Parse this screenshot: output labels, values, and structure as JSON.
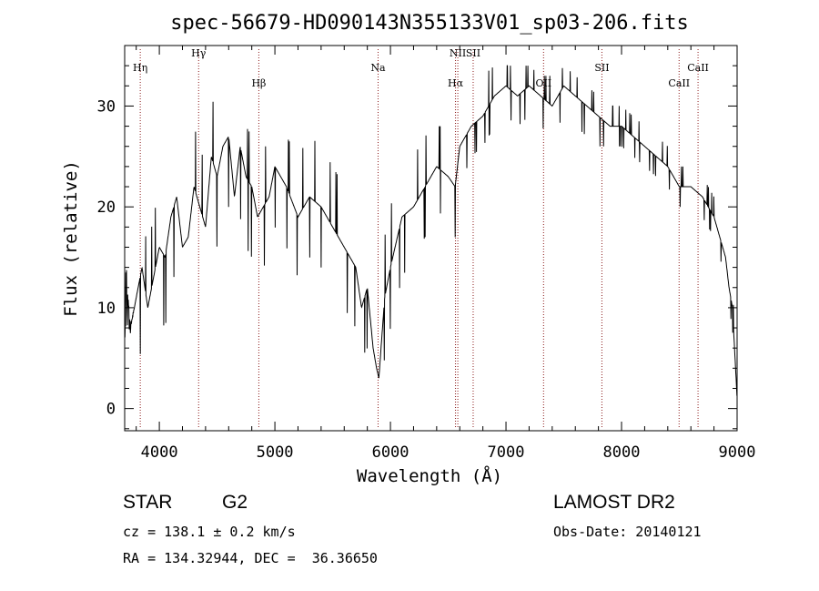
{
  "chart_data": {
    "type": "line",
    "title": "spec-56679-HD090143N355133V01_sp03-206.fits",
    "xlabel": "Wavelength (Å)",
    "ylabel": "Flux (relative)",
    "xlim": [
      3700,
      9000
    ],
    "ylim": [
      -2.2,
      36.0
    ],
    "xticks": [
      4000,
      5000,
      6000,
      7000,
      8000,
      9000
    ],
    "yticks": [
      0,
      10,
      20,
      30
    ],
    "line_color": "#000000",
    "marker_color": "#8b1a1a",
    "series": [
      {
        "x": [
          3700,
          3750,
          3800,
          3850,
          3900,
          3950,
          4000,
          4050,
          4100,
          4150,
          4200,
          4250,
          4300,
          4350,
          4400,
          4450,
          4500,
          4550,
          4600,
          4650,
          4700,
          4750,
          4800,
          4850,
          4900,
          4950,
          5000,
          5100,
          5200,
          5300,
          5400,
          5500,
          5600,
          5700,
          5750,
          5800,
          5850,
          5880,
          5900,
          5950,
          6000,
          6100,
          6200,
          6300,
          6400,
          6500,
          6560,
          6600,
          6700,
          6800,
          6900,
          7000,
          7100,
          7200,
          7300,
          7400,
          7450,
          7500,
          7600,
          7700,
          7800,
          7900,
          8000,
          8100,
          8200,
          8300,
          8400,
          8500,
          8600,
          8700,
          8800,
          8850,
          8900,
          8930,
          8960,
          9000
        ],
        "y": [
          12,
          8,
          11,
          14,
          10,
          13,
          16,
          15,
          19,
          21,
          16,
          17,
          22,
          20,
          18,
          25,
          23,
          26,
          27,
          21,
          26,
          23,
          22,
          19,
          20,
          21,
          24,
          22,
          19,
          21,
          20,
          18,
          16,
          14,
          10,
          12,
          6,
          4,
          3,
          11,
          14,
          19,
          20,
          22,
          24,
          23,
          22,
          26,
          28,
          29,
          31,
          32,
          31,
          32,
          31,
          30,
          31,
          32,
          31,
          30,
          29,
          28,
          28,
          27,
          26,
          25,
          24,
          22,
          22,
          21,
          19,
          17,
          15,
          12,
          10,
          1
        ],
        "envelope_max": [
          16,
          14,
          16,
          19,
          16,
          19,
          22,
          21,
          25,
          27,
          22,
          23,
          28,
          26,
          24,
          31,
          29,
          31,
          32,
          27,
          31,
          28,
          27,
          25,
          26,
          26,
          28,
          27,
          25,
          27,
          26,
          24,
          22,
          20,
          16,
          18,
          13,
          9,
          7,
          17,
          20,
          24,
          25,
          27,
          28,
          28,
          27,
          30,
          32,
          33,
          34,
          34,
          34,
          34,
          33,
          33,
          33,
          34,
          33,
          32,
          31,
          30,
          30,
          29,
          28,
          27,
          26,
          24,
          24,
          23,
          21,
          19,
          17,
          14,
          12,
          3
        ],
        "envelope_min": [
          3,
          1,
          4,
          6,
          4,
          6,
          9,
          8,
          12,
          14,
          9,
          10,
          15,
          13,
          11,
          18,
          16,
          19,
          20,
          14,
          19,
          16,
          15,
          12,
          14,
          15,
          18,
          16,
          13,
          15,
          14,
          12,
          10,
          8,
          5,
          6,
          2,
          2,
          2,
          5,
          8,
          13,
          15,
          17,
          20,
          18,
          17,
          22,
          25,
          26,
          28,
          29,
          28,
          29,
          28,
          27,
          28,
          29,
          28,
          27,
          26,
          26,
          26,
          25,
          24,
          23,
          22,
          20,
          20,
          19,
          17,
          15,
          13,
          10,
          8,
          0
        ]
      }
    ],
    "line_markers": [
      {
        "label": "Hη",
        "x": 3835,
        "row": 2
      },
      {
        "label": "Hγ",
        "x": 4340,
        "row": 1
      },
      {
        "label": "Hβ",
        "x": 4861,
        "row": 3
      },
      {
        "label": "Na",
        "x": 5893,
        "row": 2
      },
      {
        "label": "Hα",
        "x": 6563,
        "row": 3
      },
      {
        "label": "NII",
        "x": 6583,
        "row": 1
      },
      {
        "label": "SII",
        "x": 6716,
        "row": 1
      },
      {
        "label": "OII",
        "x": 7325,
        "row": 3
      },
      {
        "label": "SII",
        "x": 7830,
        "row": 2
      },
      {
        "label": "CaII",
        "x": 8498,
        "row": 3
      },
      {
        "label": "CaII",
        "x": 8662,
        "row": 2
      }
    ]
  },
  "info": {
    "object_type": "STAR",
    "subclass": "G2",
    "survey": "LAMOST DR2",
    "cz": "cz = 138.1 ± 0.2 km/s",
    "obs_date": "Obs-Date: 20140121",
    "coords": "RA = 134.32944, DEC =  36.36650"
  }
}
